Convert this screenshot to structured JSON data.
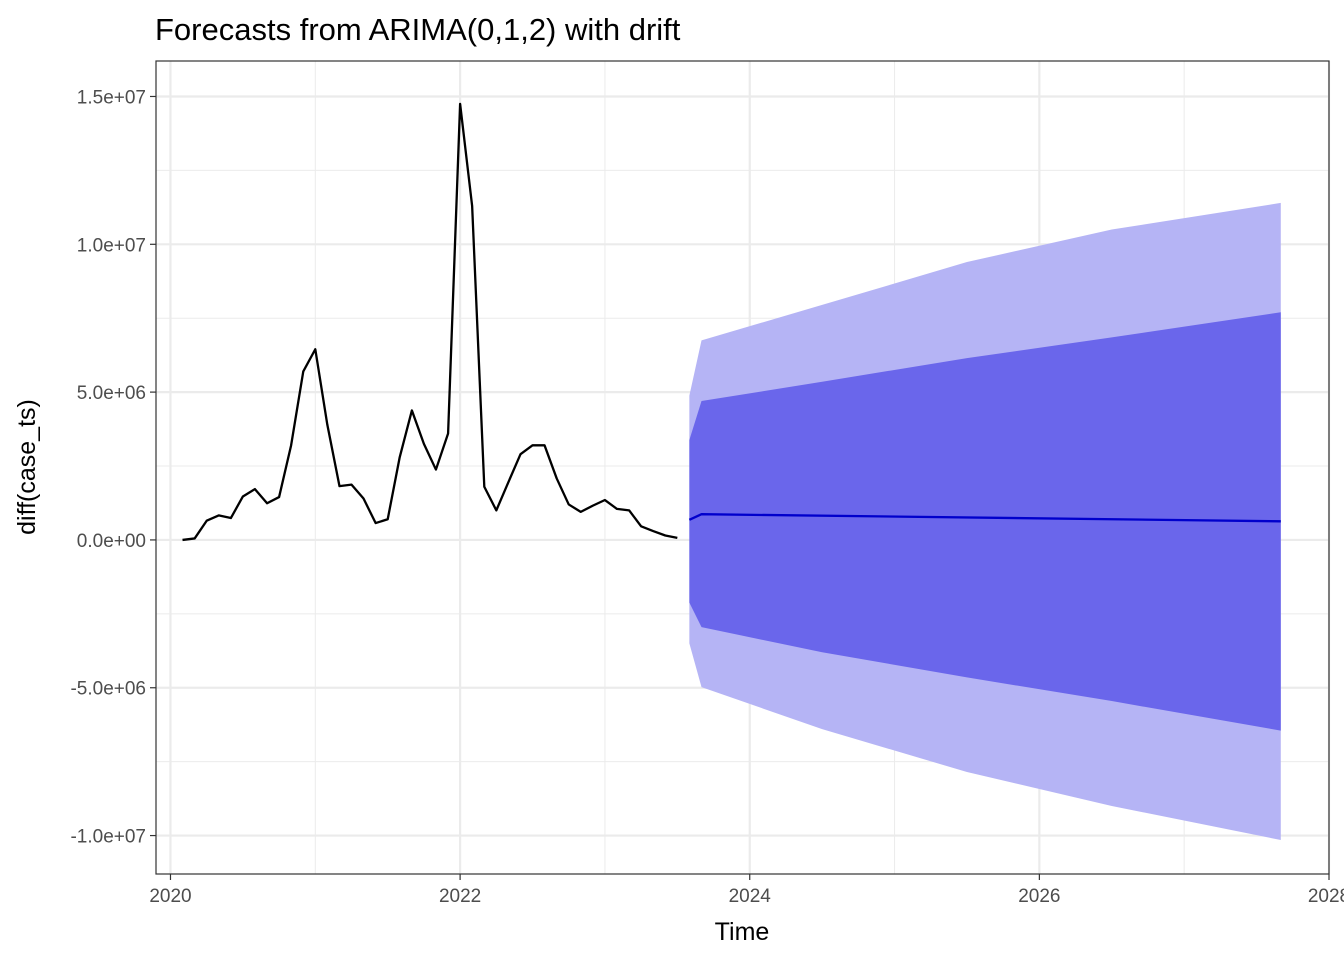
{
  "chart_data": {
    "type": "line",
    "title": "Forecasts from ARIMA(0,1,2) with drift",
    "xlabel": "Time",
    "ylabel": "diff(case_ts)",
    "xlim": [
      2019.9,
      2028.0
    ],
    "ylim": [
      -11300000,
      16200000
    ],
    "x_ticks": [
      2020,
      2022,
      2024,
      2026,
      2028
    ],
    "x_tick_labels": [
      "2020",
      "2022",
      "2024",
      "2026",
      "2028"
    ],
    "y_ticks": [
      -10000000,
      -5000000,
      0,
      5000000,
      10000000,
      15000000
    ],
    "y_tick_labels": [
      "-1.0e+07",
      "-5.0e+06",
      "0.0e+00",
      "5.0e+06",
      "1.0e+07",
      "1.5e+07"
    ],
    "grid": true,
    "colors": {
      "history": "#000000",
      "forecast": "#0000cc",
      "band_80": "#6a66eb",
      "band_95": "#b5b4f5",
      "grid": "#ebebeb",
      "panel_border": "#333333"
    },
    "series": [
      {
        "kind": "history",
        "x": [
          2020.083,
          2020.167,
          2020.25,
          2020.333,
          2020.417,
          2020.5,
          2020.583,
          2020.667,
          2020.75,
          2020.833,
          2020.917,
          2021.0,
          2021.083,
          2021.167,
          2021.25,
          2021.333,
          2021.417,
          2021.5,
          2021.583,
          2021.667,
          2021.75,
          2021.833,
          2021.917,
          2022.0,
          2022.083,
          2022.167,
          2022.25,
          2022.333,
          2022.417,
          2022.5,
          2022.583,
          2022.667,
          2022.75,
          2022.833,
          2022.917,
          2023.0,
          2023.083,
          2023.167,
          2023.25,
          2023.333,
          2023.417,
          2023.5
        ],
        "values": [
          0,
          50000,
          650000,
          830000,
          740000,
          1470000,
          1720000,
          1240000,
          1450000,
          3200000,
          5700000,
          6450000,
          3900000,
          1820000,
          1870000,
          1400000,
          570000,
          700000,
          2800000,
          4380000,
          3250000,
          2380000,
          3600000,
          14750000,
          11300000,
          1800000,
          1000000,
          1950000,
          2900000,
          3200000,
          3200000,
          2080000,
          1200000,
          950000,
          1160000,
          1350000,
          1050000,
          1000000,
          460000,
          300000,
          150000,
          70000
        ]
      },
      {
        "kind": "forecast",
        "x": [
          2023.583,
          2023.667,
          2027.667
        ],
        "values": [
          680000,
          870000,
          630000
        ]
      }
    ],
    "intervals": [
      {
        "level": 95,
        "x": [
          2023.583,
          2023.667,
          2024.5,
          2025.5,
          2026.5,
          2027.667
        ],
        "lower": [
          -3500000,
          -4980000,
          -6400000,
          -7850000,
          -9000000,
          -10150000
        ],
        "upper": [
          4880000,
          6750000,
          7950000,
          9400000,
          10500000,
          11400000
        ]
      },
      {
        "level": 80,
        "x": [
          2023.583,
          2023.667,
          2024.5,
          2025.5,
          2026.5,
          2027.667
        ],
        "lower": [
          -2120000,
          -2950000,
          -3800000,
          -4650000,
          -5450000,
          -6450000
        ],
        "upper": [
          3380000,
          4700000,
          5350000,
          6150000,
          6850000,
          7700000
        ]
      }
    ]
  }
}
